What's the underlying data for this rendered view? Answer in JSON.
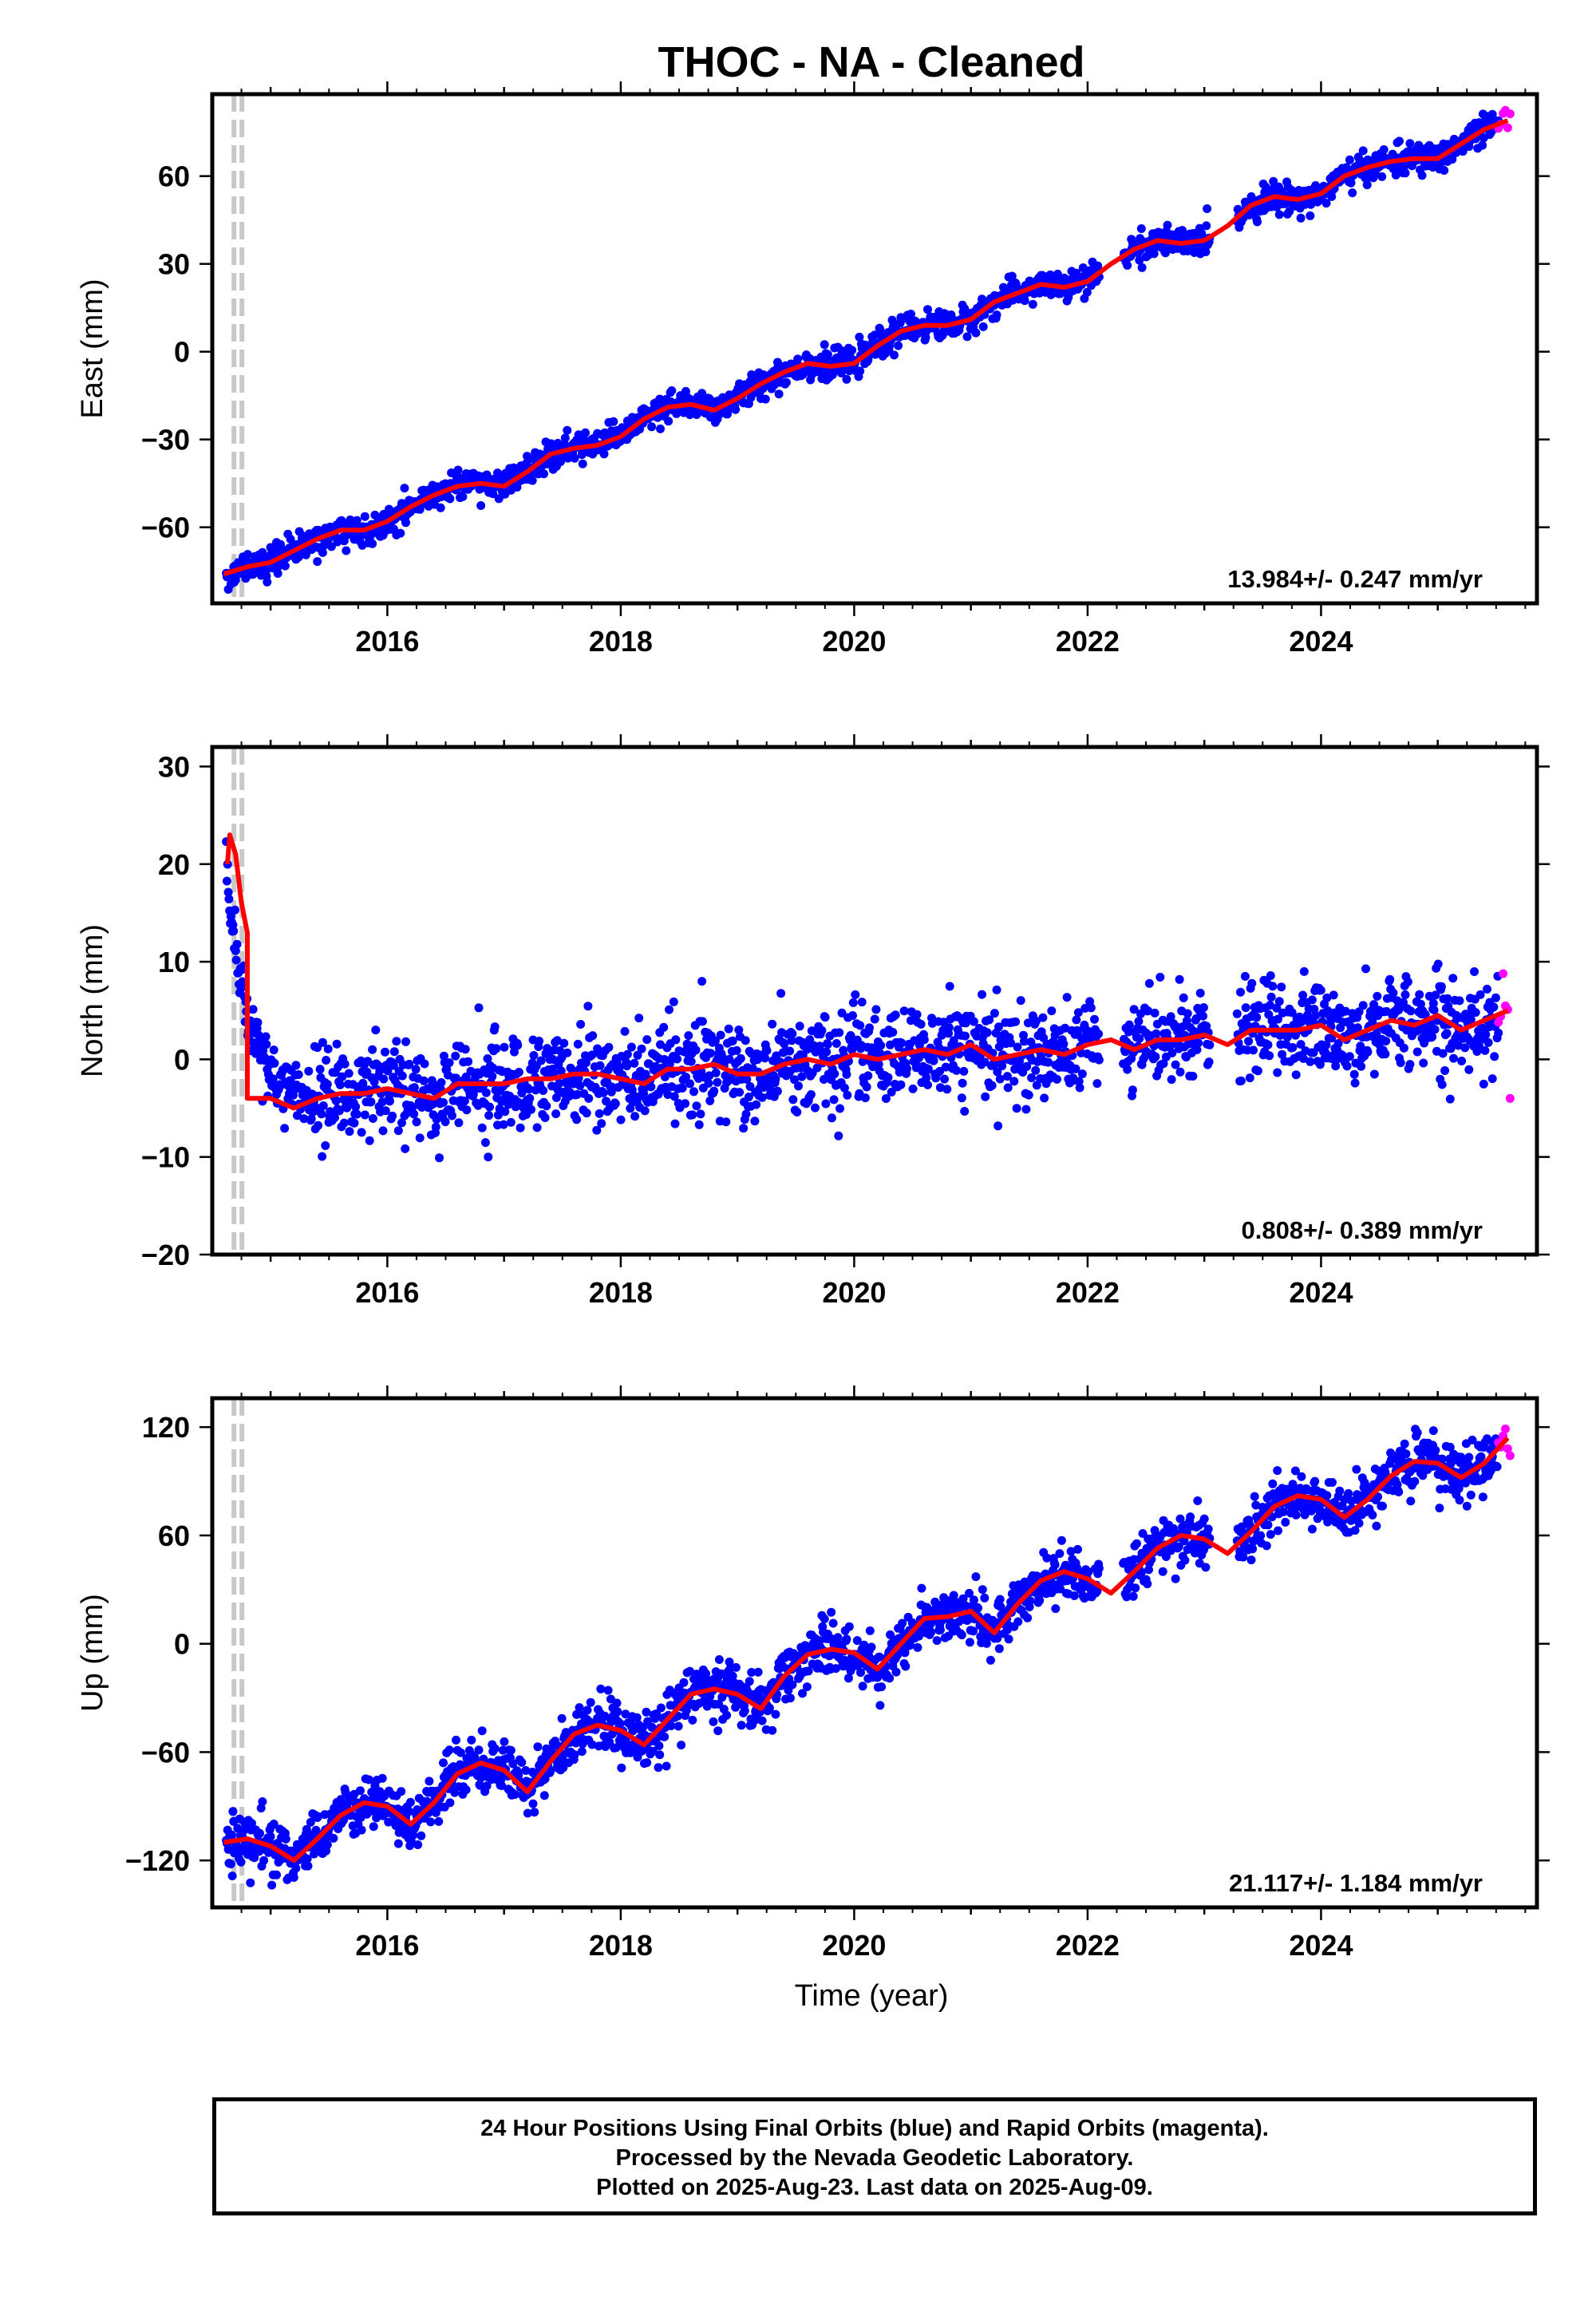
{
  "title": "THOC  - NA - Cleaned",
  "xlabel": "Time (year)",
  "colors": {
    "final": "#0000ff",
    "rapid": "#ff00ff",
    "model": "#ff0000",
    "step": "#c8c8c8"
  },
  "footer": {
    "line1": "24 Hour Positions Using Final Orbits (blue) and Rapid Orbits (magenta).",
    "line2": "Processed by the Nevada Geodetic Laboratory.",
    "line3": "Plotted on 2025-Aug-23. Last data on 2025-Aug-09."
  },
  "chart_data": [
    {
      "type": "scatter",
      "ylabel": "East (mm)",
      "xlim": [
        2014.5,
        2025.85
      ],
      "ylim": [
        -86,
        88
      ],
      "xticks": [
        2016,
        2018,
        2020,
        2022,
        2024
      ],
      "yticks": [
        -60,
        -30,
        0,
        30,
        60
      ],
      "step_x": 2014.72,
      "rate": "13.984+/- 0.247 mm/yr",
      "final_range": [
        2014.62,
        2025.52
      ],
      "rapid_range": [
        2025.52,
        2025.62
      ],
      "model_x": [
        2014.6,
        2014.8,
        2015.0,
        2015.2,
        2015.4,
        2015.6,
        2015.8,
        2016.0,
        2016.2,
        2016.4,
        2016.6,
        2016.8,
        2017.0,
        2017.2,
        2017.4,
        2017.6,
        2017.8,
        2018.0,
        2018.2,
        2018.4,
        2018.6,
        2018.8,
        2019.0,
        2019.2,
        2019.4,
        2019.6,
        2019.8,
        2020.0,
        2020.2,
        2020.4,
        2020.6,
        2020.8,
        2021.0,
        2021.2,
        2021.4,
        2021.6,
        2021.8,
        2022.0,
        2022.2,
        2022.4,
        2022.6,
        2022.8,
        2023.0,
        2023.2,
        2023.4,
        2023.6,
        2023.8,
        2024.0,
        2024.2,
        2024.4,
        2024.6,
        2024.8,
        2025.0,
        2025.2,
        2025.4,
        2025.6
      ],
      "model_y": [
        -76,
        -73.5,
        -72,
        -68,
        -64,
        -61,
        -61,
        -58,
        -53,
        -49,
        -46,
        -45,
        -46,
        -41,
        -35,
        -33,
        -32,
        -29,
        -23,
        -19,
        -18,
        -20,
        -16,
        -11,
        -7,
        -4,
        -5,
        -4,
        2,
        7,
        9,
        9,
        11,
        17,
        20,
        23,
        22,
        24,
        30,
        35,
        38,
        37,
        38,
        43,
        50,
        53,
        52,
        54,
        60,
        63,
        65,
        66,
        66,
        71,
        76,
        79
      ],
      "scatter_sd": 2.4
    },
    {
      "type": "scatter",
      "ylabel": "North (mm)",
      "xlim": [
        2014.5,
        2025.85
      ],
      "ylim": [
        -20,
        32
      ],
      "xticks": [
        2016,
        2018,
        2020,
        2022,
        2024
      ],
      "yticks": [
        -20,
        -10,
        0,
        10,
        20,
        30
      ],
      "step_x": 2014.72,
      "rate": "0.808+/- 0.389 mm/yr",
      "final_range": [
        2014.62,
        2025.52
      ],
      "rapid_range": [
        2025.52,
        2025.62
      ],
      "model_x": [
        2014.63,
        2014.65,
        2014.7,
        2014.75,
        2014.8,
        2014.8,
        2015.0,
        2015.2,
        2015.4,
        2015.6,
        2015.8,
        2016.0,
        2016.2,
        2016.4,
        2016.6,
        2016.8,
        2017.0,
        2017.2,
        2017.4,
        2017.6,
        2017.8,
        2018.0,
        2018.2,
        2018.4,
        2018.6,
        2018.8,
        2019.0,
        2019.2,
        2019.4,
        2019.6,
        2019.8,
        2020.0,
        2020.2,
        2020.4,
        2020.6,
        2020.8,
        2021.0,
        2021.2,
        2021.4,
        2021.6,
        2021.8,
        2022.0,
        2022.2,
        2022.4,
        2022.6,
        2022.8,
        2023.0,
        2023.2,
        2023.4,
        2023.6,
        2023.8,
        2024.0,
        2024.2,
        2024.4,
        2024.6,
        2024.8,
        2025.0,
        2025.2,
        2025.4,
        2025.6
      ],
      "model_y": [
        20,
        23,
        21,
        16,
        13,
        -4,
        -4,
        -5,
        -4,
        -3.5,
        -3.5,
        -3,
        -3.5,
        -4,
        -2.5,
        -2.5,
        -2.5,
        -2,
        -2,
        -1.5,
        -1.5,
        -2,
        -2.5,
        -1,
        -1,
        -0.5,
        -1.5,
        -1.5,
        -0.5,
        0,
        -0.5,
        0.5,
        0,
        0.5,
        1,
        0.5,
        1.5,
        0,
        0.5,
        1,
        0.5,
        1.5,
        2,
        1,
        2,
        2,
        2.5,
        1.5,
        3,
        3,
        3,
        3.5,
        2,
        3,
        4,
        3.5,
        4.5,
        3,
        4,
        5
      ],
      "scatter_sd": 2.3
    },
    {
      "type": "scatter",
      "ylabel": "Up (mm)",
      "xlim": [
        2014.5,
        2025.85
      ],
      "ylim": [
        -146,
        136
      ],
      "xticks": [
        2016,
        2018,
        2020,
        2022,
        2024
      ],
      "yticks": [
        -120,
        -60,
        0,
        60,
        120
      ],
      "step_x": 2014.72,
      "rate": "21.117+/- 1.184 mm/yr",
      "final_range": [
        2014.62,
        2025.52
      ],
      "rapid_range": [
        2025.52,
        2025.62
      ],
      "model_x": [
        2014.6,
        2014.8,
        2015.0,
        2015.2,
        2015.4,
        2015.6,
        2015.8,
        2016.0,
        2016.2,
        2016.4,
        2016.6,
        2016.8,
        2017.0,
        2017.2,
        2017.4,
        2017.6,
        2017.8,
        2018.0,
        2018.2,
        2018.4,
        2018.6,
        2018.8,
        2019.0,
        2019.2,
        2019.4,
        2019.6,
        2019.8,
        2020.0,
        2020.2,
        2020.4,
        2020.6,
        2020.8,
        2021.0,
        2021.2,
        2021.4,
        2021.6,
        2021.8,
        2022.0,
        2022.2,
        2022.4,
        2022.6,
        2022.8,
        2023.0,
        2023.2,
        2023.4,
        2023.6,
        2023.8,
        2024.0,
        2024.2,
        2024.4,
        2024.6,
        2024.8,
        2025.0,
        2025.2,
        2025.4,
        2025.6
      ],
      "model_y": [
        -110,
        -108,
        -112,
        -120,
        -108,
        -95,
        -88,
        -90,
        -100,
        -88,
        -72,
        -66,
        -70,
        -82,
        -65,
        -50,
        -45,
        -48,
        -56,
        -42,
        -28,
        -25,
        -28,
        -36,
        -18,
        -6,
        -3,
        -5,
        -14,
        0,
        14,
        15,
        18,
        6,
        22,
        35,
        40,
        36,
        28,
        40,
        53,
        60,
        58,
        50,
        62,
        76,
        82,
        80,
        70,
        80,
        93,
        101,
        100,
        92,
        100,
        114
      ],
      "scatter_sd": 7.5
    }
  ]
}
